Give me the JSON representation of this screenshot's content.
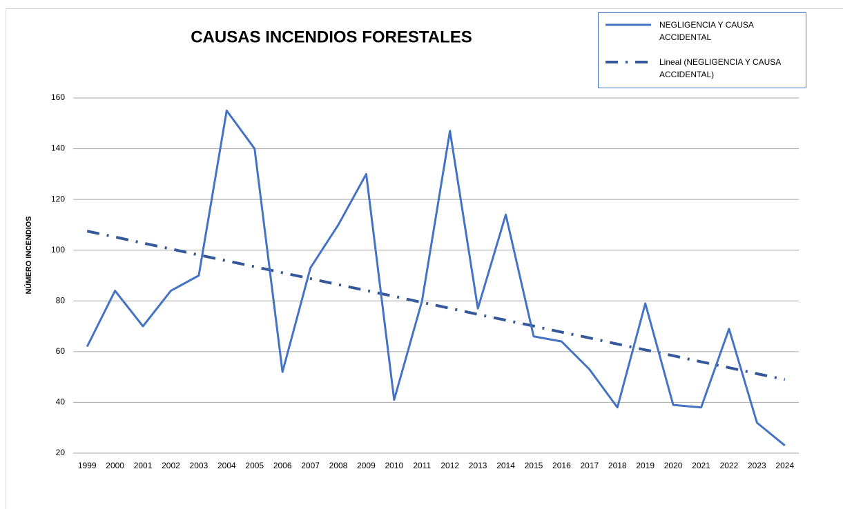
{
  "chart_data": {
    "type": "line",
    "title": "CAUSAS INCENDIOS FORESTALES",
    "y_label": "NÚMERO INCENDIOS",
    "categories": [
      "1999",
      "2000",
      "2001",
      "2002",
      "2003",
      "2004",
      "2005",
      "2006",
      "2007",
      "2008",
      "2009",
      "2010",
      "2011",
      "2012",
      "2013",
      "2014",
      "2015",
      "2016",
      "2017",
      "2018",
      "2019",
      "2020",
      "2021",
      "2022",
      "2023",
      "2024"
    ],
    "series": [
      {
        "name": "NEGLIGENCIA Y CAUSA ACCIDENTAL",
        "color": "#4472c4",
        "style": "solid",
        "values": [
          62,
          84,
          70,
          84,
          90,
          155,
          140,
          52,
          93,
          110,
          130,
          41,
          80,
          147,
          77,
          114,
          66,
          64,
          53,
          38,
          79,
          39,
          38,
          69,
          32,
          23
        ]
      },
      {
        "name": "Lineal (NEGLIGENCIA Y CAUSA ACCIDENTAL)",
        "color": "#34589a",
        "style": "dash-dot",
        "values": [
          107.5,
          105.2,
          102.8,
          100.5,
          98.1,
          95.8,
          93.5,
          91.1,
          88.8,
          86.4,
          84.1,
          81.8,
          79.4,
          77.1,
          74.7,
          72.4,
          70.1,
          67.7,
          65.4,
          63.0,
          60.7,
          58.4,
          56.0,
          53.7,
          51.3,
          49.0
        ]
      }
    ],
    "ylim": [
      20,
      160
    ],
    "yticks": [
      20,
      40,
      60,
      80,
      100,
      120,
      140,
      160
    ],
    "grid": true,
    "legend": "top-right"
  }
}
